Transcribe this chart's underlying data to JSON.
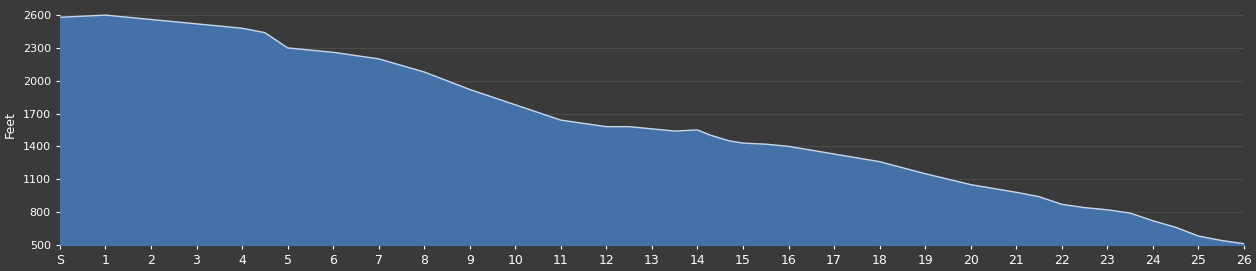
{
  "background_color": "#3a3a3a",
  "fill_color": "#4472a8",
  "line_color": "#c8d8e8",
  "text_color": "#ffffff",
  "grid_color": "#555555",
  "ylabel": "Feet",
  "ylim": [
    500,
    2700
  ],
  "yticks": [
    500,
    800,
    1100,
    1400,
    1700,
    2000,
    2300,
    2600
  ],
  "xtick_labels": [
    "S",
    "1",
    "2",
    "3",
    "4",
    "5",
    "6",
    "7",
    "8",
    "9",
    "10",
    "11",
    "12",
    "13",
    "14",
    "15",
    "16",
    "17",
    "18",
    "19",
    "20",
    "21",
    "22",
    "23",
    "24",
    "25",
    "26"
  ],
  "x": [
    0,
    1,
    2,
    3,
    4,
    4.5,
    5,
    5.5,
    6,
    7,
    8,
    9,
    10,
    11,
    11.5,
    12,
    12.5,
    13,
    13.5,
    14,
    14.3,
    14.7,
    15,
    15.5,
    16,
    17,
    18,
    19,
    20,
    21,
    21.5,
    22,
    22.5,
    23,
    23.5,
    24,
    24.5,
    25,
    25.5,
    26
  ],
  "y": [
    2580,
    2600,
    2560,
    2520,
    2480,
    2440,
    2300,
    2280,
    2260,
    2200,
    2080,
    1920,
    1780,
    1640,
    1610,
    1580,
    1580,
    1560,
    1540,
    1550,
    1500,
    1450,
    1430,
    1420,
    1400,
    1330,
    1260,
    1150,
    1050,
    980,
    940,
    870,
    840,
    820,
    790,
    720,
    660,
    580,
    540,
    510
  ]
}
